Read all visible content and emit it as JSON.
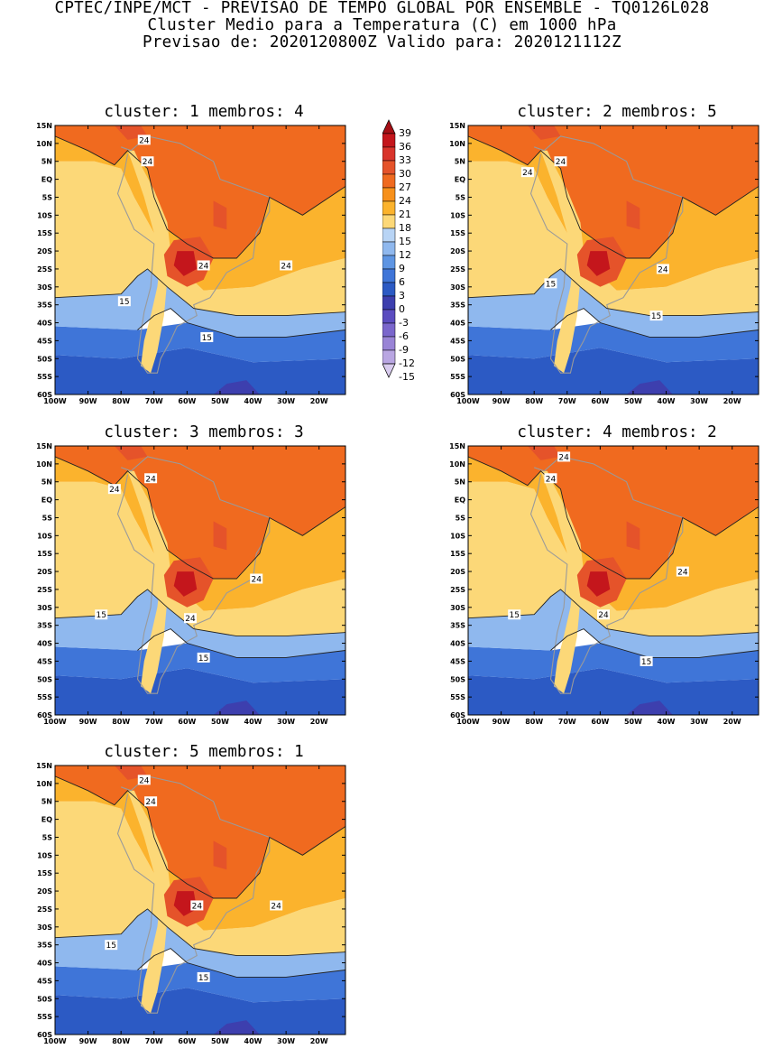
{
  "header": {
    "line1": "CPTEC/INPE/MCT - PREVISAO DE TEMPO GLOBAL POR ENSEMBLE - TQ0126L028",
    "line2": "Cluster Medio para a Temperatura (C) em 1000 hPa",
    "line3": "Previsao de: 2020120800Z   Valido para: 2020121112Z"
  },
  "panels": [
    {
      "title": "cluster: 1   membros: 4",
      "contour_labels": [
        "24",
        "24",
        "24",
        "24",
        "15",
        "15"
      ]
    },
    {
      "title": "cluster: 2   membros: 5",
      "contour_labels": [
        "24",
        "24",
        "24",
        "15",
        "15"
      ]
    },
    {
      "title": "cluster: 3   membros: 3",
      "contour_labels": [
        "24",
        "24",
        "24",
        "24",
        "15",
        "15"
      ]
    },
    {
      "title": "cluster: 4   membros: 2",
      "contour_labels": [
        "24",
        "24",
        "24",
        "24",
        "15",
        "15"
      ]
    },
    {
      "title": "cluster: 5   membros: 1",
      "contour_labels": [
        "24",
        "24",
        "24",
        "24",
        "15",
        "15"
      ]
    }
  ],
  "axes": {
    "lat_ticks": [
      "15N",
      "10N",
      "5N",
      "EQ",
      "5S",
      "10S",
      "15S",
      "20S",
      "25S",
      "30S",
      "35S",
      "40S",
      "45S",
      "50S",
      "55S",
      "60S"
    ],
    "lon_ticks": [
      "100W",
      "90W",
      "80W",
      "70W",
      "60W",
      "50W",
      "40W",
      "30W",
      "20W"
    ],
    "lat_range": [
      -60,
      15
    ],
    "lon_range": [
      -100,
      -12
    ]
  },
  "colorbar": {
    "labels": [
      "39",
      "36",
      "33",
      "30",
      "27",
      "24",
      "21",
      "18",
      "15",
      "12",
      "9",
      "6",
      "3",
      "0",
      "-3",
      "-6",
      "-9",
      "-12",
      "-15"
    ],
    "colors": [
      "#a50f15",
      "#c4161c",
      "#d9342b",
      "#e5532a",
      "#f06a1f",
      "#f7901a",
      "#fbb32d",
      "#fcd878",
      "#b8d4f5",
      "#8fb8ee",
      "#5e95e3",
      "#3f75d8",
      "#2c5ac4",
      "#3d3fae",
      "#5b4cc0",
      "#7a66cc",
      "#9984d6",
      "#b9a6e2",
      "#d9ccef"
    ]
  }
}
